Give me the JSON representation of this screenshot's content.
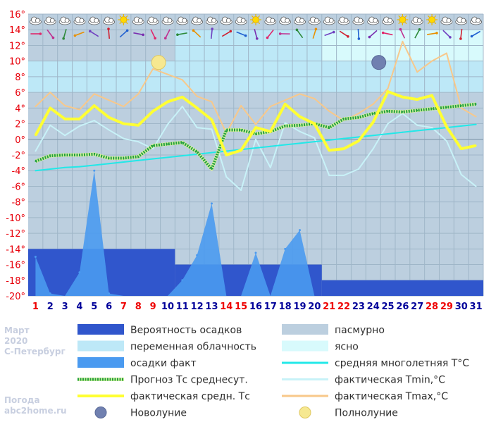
{
  "side_info": {
    "month": "Март",
    "year": "2020",
    "city": "С-Петербург",
    "site_line1": "Погода",
    "site_line2": "abc2home.ru"
  },
  "colors": {
    "overcast": "#bccfdf",
    "partly_cloudy": "#bde8f7",
    "clear": "#d8fafc",
    "precip_prob": "#3056cc",
    "precip_fact": "#4a9af0",
    "forecast": "#22a040",
    "fact_mean": "#ffff33",
    "norm": "#22e8e8",
    "tmin": "#c8f2f8",
    "tmax": "#f8c88a",
    "tick_red": "#e8000b",
    "xtick_black": "#000099",
    "xtick_red": "#ee0000"
  },
  "icons": [
    "cloud-icon",
    "sun-icon",
    "wind-arrow-icon",
    "new-moon-icon",
    "full-moon-icon"
  ],
  "legend": [
    {
      "label": "Вероятность осадков",
      "swatch": "precip_prob",
      "kind": "block"
    },
    {
      "label": "пасмурно",
      "swatch": "overcast",
      "kind": "block"
    },
    {
      "label": "переменная облачность",
      "swatch": "partly_cloudy",
      "kind": "block"
    },
    {
      "label": "ясно",
      "swatch": "clear",
      "kind": "block"
    },
    {
      "label": "осадки факт",
      "swatch": "precip_fact",
      "kind": "block"
    },
    {
      "label": "средняя многолетняя T°C",
      "swatch": "norm",
      "kind": "line"
    },
    {
      "label": "Прогноз Tс среднесут.",
      "swatch": "forecast",
      "kind": "dotted"
    },
    {
      "label": "фактическая Tmin,°C",
      "swatch": "tmin",
      "kind": "line"
    },
    {
      "label": "фактическая средн. Tс",
      "swatch": "fact_mean",
      "kind": "thick"
    },
    {
      "label": "фактическая Tmax,°C",
      "swatch": "tmax",
      "kind": "line"
    },
    {
      "label": "Новолуние",
      "swatch": "new_moon",
      "kind": "moon"
    },
    {
      "label": "Полнолуние",
      "swatch": "full_moon",
      "kind": "moon"
    }
  ],
  "chart_data": {
    "type": "line",
    "x": [
      1,
      2,
      3,
      4,
      5,
      6,
      7,
      8,
      9,
      10,
      11,
      12,
      13,
      14,
      15,
      16,
      17,
      18,
      19,
      20,
      21,
      22,
      23,
      24,
      25,
      26,
      27,
      28,
      29,
      30,
      31
    ],
    "x_labels": [
      "1",
      "2",
      "3",
      "4",
      "5",
      "6",
      "7",
      "8",
      "9",
      "10",
      "11",
      "12",
      "13",
      "14",
      "15",
      "16",
      "17",
      "18",
      "19",
      "20",
      "21",
      "22",
      "23",
      "24",
      "25",
      "26",
      "27",
      "28",
      "29",
      "30",
      "31"
    ],
    "x_label_red": [
      1,
      7,
      8,
      9,
      14,
      15,
      21,
      22,
      28,
      29
    ],
    "y_ticks": [
      "16°",
      "14°",
      "12°",
      "10°",
      "8°",
      "6°",
      "4°",
      "2°",
      "0°",
      "-2°",
      "-4°",
      "-6°",
      "-8°",
      "-10°",
      "-12°",
      "-14°",
      "-16°",
      "-18°",
      "-20°"
    ],
    "ylim": [
      -20,
      16
    ],
    "grid": true,
    "cloudiness": [
      {
        "from": 1,
        "to": 10,
        "state": "overcast"
      },
      {
        "from": 11,
        "to": 20,
        "state": "partly_cloudy"
      },
      {
        "from": 21,
        "to": 31,
        "state": "clear"
      }
    ],
    "precip_probability": [
      {
        "from": 1,
        "to": 10,
        "level": -14
      },
      {
        "from": 11,
        "to": 20,
        "level": -16
      },
      {
        "from": 21,
        "to": 31,
        "level": -18
      }
    ],
    "series": [
      {
        "key": "precip_fact",
        "values": [
          -15,
          -19.7,
          -20,
          -17,
          -4,
          -19.7,
          -20,
          -20,
          -20,
          -20,
          -18,
          -14.8,
          -8.2,
          -20,
          -20,
          -14.5,
          -20,
          -14,
          -11.6,
          -20,
          -20,
          -20,
          -20,
          -20,
          -20,
          -20,
          -20,
          -20,
          -20,
          -20,
          -20
        ]
      },
      {
        "key": "tmax",
        "values": [
          4.2,
          6.0,
          4.3,
          3.8,
          5.8,
          5.0,
          4.2,
          5.8,
          9.0,
          8.3,
          7.6,
          5.5,
          4.8,
          0.8,
          4.3,
          1.9,
          4.2,
          5.0,
          5.8,
          5.2,
          3.6,
          2.4,
          3.3,
          4.5,
          6.5,
          12.5,
          8.6,
          10.0,
          11.0,
          4.0,
          2.9
        ]
      },
      {
        "key": "tmin",
        "values": [
          -1.5,
          1.8,
          0.5,
          1.7,
          2.4,
          1.2,
          0.1,
          -0.3,
          -1.2,
          1.9,
          4.2,
          1.5,
          1.3,
          -4.8,
          -6.5,
          0,
          -3.6,
          2.1,
          1.0,
          0.2,
          -4.6,
          -4.6,
          -3.8,
          -1.2,
          2.0,
          3.3,
          1.8,
          1.5,
          -0.2,
          -4.5,
          -6.0
        ]
      },
      {
        "key": "norm",
        "values": [
          -4.0,
          -3.8,
          -3.6,
          -3.5,
          -3.3,
          -3.1,
          -2.9,
          -2.7,
          -2.5,
          -2.3,
          -2.1,
          -1.9,
          -1.7,
          -1.5,
          -1.3,
          -1.1,
          -0.9,
          -0.7,
          -0.5,
          -0.3,
          -0.1,
          0.1,
          0.3,
          0.5,
          0.7,
          0.9,
          1.1,
          1.3,
          1.5,
          1.7,
          1.9
        ]
      },
      {
        "key": "forecast",
        "values": [
          -2.8,
          -2.1,
          -2.0,
          -2.0,
          -1.9,
          -2.4,
          -2.4,
          -2.2,
          -0.8,
          -0.6,
          -0.4,
          -1.6,
          -3.8,
          1.2,
          1.2,
          0.7,
          1.0,
          1.7,
          1.8,
          2.0,
          1.5,
          2.6,
          2.8,
          3.3,
          3.6,
          3.5,
          3.7,
          3.9,
          4.1,
          4.3,
          4.5
        ]
      },
      {
        "key": "fact_mean",
        "values": [
          0.5,
          4.0,
          2.6,
          2.6,
          4.3,
          2.8,
          2.0,
          1.8,
          3.6,
          4.8,
          5.4,
          4.0,
          2.5,
          -2.0,
          -1.4,
          1.5,
          1.0,
          4.5,
          2.9,
          2.0,
          -1.4,
          -1.2,
          -0.2,
          2.2,
          6.1,
          5.4,
          5.1,
          5.6,
          1.6,
          -1.2,
          -0.8
        ]
      }
    ],
    "moon_events": [
      {
        "day": 9,
        "phase": "full",
        "y": 10
      },
      {
        "day": 24,
        "phase": "new",
        "y": 10
      }
    ],
    "weather_icons_row": [
      "cloud",
      "cloud",
      "cloud",
      "cloud",
      "cloud",
      "cloud",
      "sun",
      "cloud",
      "cloud",
      "cloud",
      "cloud",
      "cloud",
      "cloud",
      "cloud",
      "cloud",
      "sun",
      "cloud",
      "cloud",
      "cloud",
      "cloud",
      "cloud",
      "cloud",
      "cloud",
      "cloud",
      "cloud",
      "sun",
      "cloud",
      "sun",
      "cloud",
      "cloud",
      "cloud"
    ]
  }
}
